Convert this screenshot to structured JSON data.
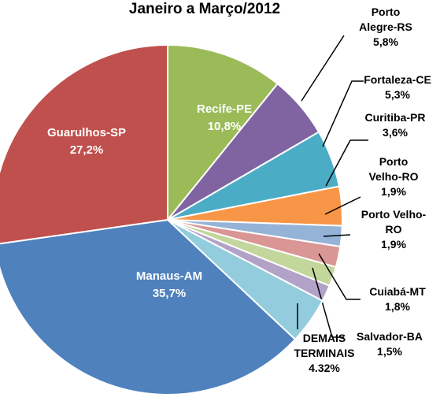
{
  "chart_data": {
    "type": "pie",
    "title": "Janeiro a Março/2012",
    "categories": [
      "Recife-PE",
      "Porto Alegre-RS",
      "Fortaleza-CE",
      "Curitiba-PR",
      "Porto Velho-RO",
      "Porto Velho-RO",
      "Cuiabá-MT",
      "Salvador-BA",
      "DEMAIS TERMINAIS",
      "Manaus-AM",
      "Guarulhos-SP"
    ],
    "values": [
      10.8,
      5.8,
      5.3,
      3.6,
      1.9,
      1.9,
      1.8,
      1.5,
      4.32,
      35.7,
      27.2
    ],
    "value_labels": [
      "10,8%",
      "5,8%",
      "5,3%",
      "3,6%",
      "1,9%",
      "1,9%",
      "1,8%",
      "1,5%",
      "4.32%",
      "35,7%",
      "27,2%"
    ],
    "colors": [
      "#9bbb59",
      "#8064a2",
      "#4bacc6",
      "#f79646",
      "#95b3d7",
      "#d99694",
      "#c3d69b",
      "#b3a2c7",
      "#93cddd",
      "#4f81bd",
      "#c0504d"
    ]
  }
}
